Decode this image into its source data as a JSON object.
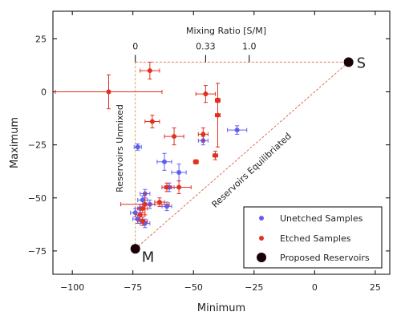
{
  "chart_data": {
    "type": "scatter",
    "xlabel": "Minimum",
    "ylabel": "Maximum",
    "xlim": [
      -108,
      31
    ],
    "ylim": [
      -86,
      38
    ],
    "x_ticks": [
      -100,
      -75,
      -50,
      -25,
      0,
      25
    ],
    "y_ticks": [
      25,
      0,
      -25,
      -50,
      -75
    ],
    "x_tick_labels": [
      "−100",
      "−75",
      "−50",
      "−25",
      "0",
      "25"
    ],
    "y_tick_labels": [
      "25",
      "0",
      "−25",
      "−50",
      "−75"
    ],
    "grid": false,
    "legend_position": "bottom-right",
    "colors": {
      "unetched": "#6060f0",
      "etched": "#e0301e",
      "reservoir": "#1a0008",
      "mixing_line": "#d05030",
      "unmixed_line": "#c89020"
    },
    "series": [
      {
        "name": "Unetched Samples",
        "marker": "circle",
        "color": "#6060f0",
        "points": [
          {
            "x": -73,
            "y": -26,
            "xerr": 1.5,
            "yerr": 1.5
          },
          {
            "x": -46,
            "y": -23,
            "xerr": 2,
            "yerr": 2
          },
          {
            "x": -32,
            "y": -18,
            "xerr": 4,
            "yerr": 2
          },
          {
            "x": -62,
            "y": -33,
            "xerr": 3,
            "yerr": 4
          },
          {
            "x": -56,
            "y": -38,
            "xerr": 3,
            "yerr": 4
          },
          {
            "x": -60,
            "y": -45,
            "xerr": 2,
            "yerr": 2
          },
          {
            "x": -70,
            "y": -48,
            "xerr": 2,
            "yerr": 2
          },
          {
            "x": -71,
            "y": -51,
            "xerr": 2,
            "yerr": 2
          },
          {
            "x": -68,
            "y": -53,
            "xerr": 2,
            "yerr": 2
          },
          {
            "x": -72,
            "y": -55,
            "xerr": 2,
            "yerr": 2
          },
          {
            "x": -74,
            "y": -57,
            "xerr": 2,
            "yerr": 2
          },
          {
            "x": -73,
            "y": -60,
            "xerr": 2,
            "yerr": 2
          },
          {
            "x": -70,
            "y": -62,
            "xerr": 2,
            "yerr": 2
          },
          {
            "x": -61,
            "y": -54,
            "xerr": 2,
            "yerr": 2
          }
        ]
      },
      {
        "name": "Etched Samples",
        "marker": "circle",
        "color": "#e0301e",
        "points": [
          {
            "x": -85,
            "y": 0,
            "xerr": 22,
            "yerr": 8
          },
          {
            "x": -68,
            "y": 10,
            "xerr": 4,
            "yerr": 4
          },
          {
            "x": -45,
            "y": -1,
            "xerr": 4,
            "yerr": 4
          },
          {
            "x": -40,
            "y": -4,
            "xerr": 1,
            "yerr": 1
          },
          {
            "x": -40,
            "y": -11,
            "xerr": 1,
            "yerr": 15
          },
          {
            "x": -67,
            "y": -14,
            "xerr": 3,
            "yerr": 3
          },
          {
            "x": -58,
            "y": -21,
            "xerr": 4,
            "yerr": 4
          },
          {
            "x": -46,
            "y": -20,
            "xerr": 2,
            "yerr": 3
          },
          {
            "x": -41,
            "y": -30,
            "xerr": 1,
            "yerr": 2
          },
          {
            "x": -49,
            "y": -33,
            "xerr": 1,
            "yerr": 1
          },
          {
            "x": -61,
            "y": -45,
            "xerr": 2,
            "yerr": 2
          },
          {
            "x": -56,
            "y": -45,
            "xerr": 5,
            "yerr": 3
          },
          {
            "x": -64,
            "y": -52,
            "xerr": 2,
            "yerr": 2
          },
          {
            "x": -70,
            "y": -53,
            "xerr": 10,
            "yerr": 5
          },
          {
            "x": -71,
            "y": -55,
            "xerr": 2,
            "yerr": 2
          },
          {
            "x": -72,
            "y": -58,
            "xerr": 2,
            "yerr": 3
          },
          {
            "x": -71,
            "y": -61,
            "xerr": 2,
            "yerr": 2
          }
        ]
      },
      {
        "name": "Proposed Reservoirs",
        "marker": "circle",
        "color": "#1a0008",
        "points": [
          {
            "x": 14,
            "y": 14,
            "label": "S"
          },
          {
            "x": -74,
            "y": -74,
            "label": "M"
          }
        ]
      }
    ],
    "annotations": {
      "mixing_ratio_title": "Mixing Ratio [S/M]",
      "mixing_ratio_ticks": [
        {
          "label": "0",
          "x": -74
        },
        {
          "label": "0.33",
          "x": -45
        },
        {
          "label": "1.0",
          "x": -27
        }
      ],
      "unmixed_label": "Reservoirs Unmixed",
      "equilibrated_label": "Reservoirs Equilibriated"
    }
  }
}
